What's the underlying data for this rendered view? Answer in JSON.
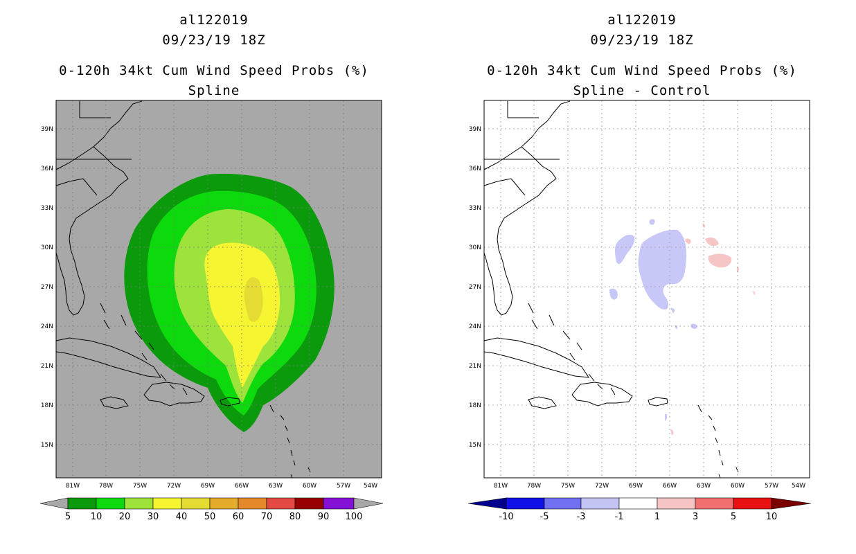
{
  "left": {
    "storm_id": "al122019",
    "datetime": "09/23/19 18Z",
    "product": "0-120h 34kt Cum Wind Speed Probs (%)",
    "subtitle": "Spline",
    "colorbar": {
      "labels": [
        "5",
        "10",
        "20",
        "30",
        "40",
        "50",
        "60",
        "70",
        "80",
        "90",
        "100"
      ],
      "colors": [
        "#0b9a0b",
        "#0dda0d",
        "#9de33b",
        "#f5f532",
        "#e4dc33",
        "#e4ab2c",
        "#e3892c",
        "#e24a43",
        "#960000",
        "#8510d6"
      ],
      "end_color": "#a8a8a8"
    },
    "background_color": "#a8a8a8",
    "contour_fill_colors": [
      "#0b9a0b",
      "#0dda0d",
      "#9de33b",
      "#f5f532",
      "#e4dc33"
    ]
  },
  "right": {
    "storm_id": "al122019",
    "datetime": "09/23/19 18Z",
    "product": "0-120h 34kt Cum Wind Speed Probs (%)",
    "subtitle": "Spline - Control",
    "colorbar": {
      "labels": [
        "-10",
        "-5",
        "-3",
        "-1",
        "1",
        "3",
        "5",
        "10"
      ],
      "colors": [
        "#0a0aa0",
        "#1010e8",
        "#7070f0",
        "#c4c4f4",
        "#ffffff",
        "#f6c4c4",
        "#f07070",
        "#e81010",
        "#800000"
      ],
      "left_end_color": "#00008c",
      "right_end_color": "#7a0000"
    },
    "negative_color": "#c8c8f8",
    "positive_color": "#f6c6c6"
  },
  "axes": {
    "lon_labels": [
      "81W",
      "78W",
      "75W",
      "72W",
      "69W",
      "66W",
      "63W",
      "60W",
      "57W",
      "54W"
    ],
    "lat_labels": [
      "39N",
      "36N",
      "33N",
      "30N",
      "27N",
      "24N",
      "21N",
      "18N",
      "15N"
    ]
  }
}
